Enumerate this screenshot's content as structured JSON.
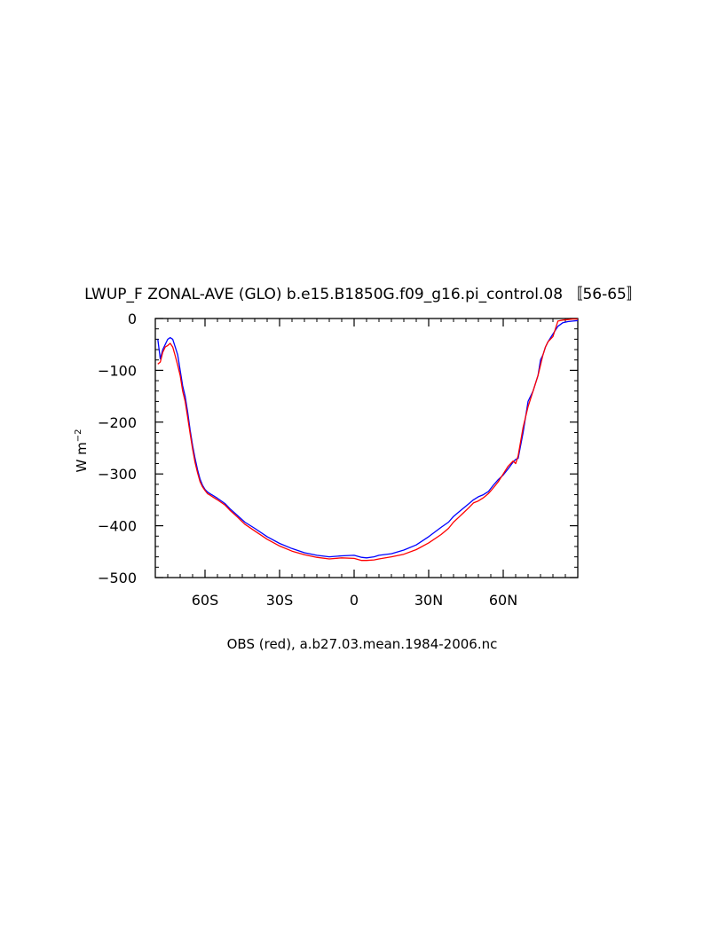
{
  "chart_data": {
    "type": "line",
    "title": "LWUP_F ZONAL-AVE (GLO) b.e15.B1850G.f09_g16.pi_control.08 〚56-65〛",
    "xlabel": "OBS (red), a.b27.03.mean.1984-2006.nc",
    "ylabel": "W m",
    "ylabel_sup": "−2",
    "xlim": [
      -80,
      90
    ],
    "ylim": [
      -500,
      0
    ],
    "x_ticks": [
      {
        "value": -60,
        "label": "60S"
      },
      {
        "value": -30,
        "label": "30S"
      },
      {
        "value": 0,
        "label": "0"
      },
      {
        "value": 30,
        "label": "30N"
      },
      {
        "value": 60,
        "label": "60N"
      }
    ],
    "y_ticks": [
      {
        "value": 0,
        "label": "0"
      },
      {
        "value": -100,
        "label": "−100"
      },
      {
        "value": -200,
        "label": "−200"
      },
      {
        "value": -300,
        "label": "−300"
      },
      {
        "value": -400,
        "label": "−400"
      },
      {
        "value": -500,
        "label": "−500"
      }
    ],
    "grid": false,
    "series": [
      {
        "color": "#0000ff",
        "x": [
          -79,
          -78,
          -77,
          -76,
          -75,
          -74,
          -73,
          -72,
          -71,
          -70,
          -69,
          -68,
          -67,
          -66,
          -65,
          -64,
          -63,
          -62,
          -61,
          -60,
          -59,
          -58,
          -57,
          -55,
          -52,
          -50,
          -47,
          -44,
          -40,
          -35,
          -30,
          -25,
          -20,
          -15,
          -10,
          -5,
          0,
          3,
          5,
          8,
          10,
          15,
          20,
          25,
          30,
          35,
          38,
          40,
          42,
          44,
          46,
          48,
          50,
          52,
          54,
          56,
          58,
          60,
          62,
          64,
          65,
          66,
          68,
          70,
          72,
          74,
          75,
          76,
          77,
          78,
          80,
          82,
          84,
          86,
          88,
          90
        ],
        "y": [
          -40,
          -78,
          -60,
          -50,
          -40,
          -37,
          -40,
          -55,
          -70,
          -100,
          -130,
          -150,
          -180,
          -215,
          -245,
          -270,
          -292,
          -310,
          -322,
          -330,
          -335,
          -338,
          -341,
          -347,
          -357,
          -367,
          -380,
          -393,
          -405,
          -421,
          -434,
          -444,
          -452,
          -457,
          -460,
          -458,
          -457,
          -461,
          -462,
          -460,
          -457,
          -454,
          -447,
          -437,
          -421,
          -403,
          -393,
          -382,
          -374,
          -366,
          -358,
          -350,
          -344,
          -340,
          -334,
          -322,
          -311,
          -302,
          -290,
          -277,
          -272,
          -270,
          -220,
          -160,
          -140,
          -110,
          -80,
          -70,
          -55,
          -45,
          -30,
          -15,
          -8,
          -6,
          -5,
          -4
        ]
      },
      {
        "color": "#ff0000",
        "x": [
          -79,
          -78,
          -77,
          -76,
          -75,
          -74,
          -73,
          -72,
          -71,
          -70,
          -69,
          -68,
          -67,
          -66,
          -65,
          -64,
          -63,
          -62,
          -61,
          -60,
          -59,
          -58,
          -57,
          -55,
          -52,
          -50,
          -47,
          -44,
          -40,
          -35,
          -30,
          -25,
          -20,
          -15,
          -10,
          -5,
          0,
          3,
          5,
          8,
          10,
          15,
          20,
          25,
          30,
          35,
          38,
          40,
          42,
          44,
          46,
          48,
          50,
          52,
          54,
          56,
          58,
          60,
          62,
          64,
          65,
          66,
          68,
          70,
          72,
          74,
          75,
          76,
          77,
          78,
          80,
          82,
          84,
          86,
          88,
          90
        ],
        "y": [
          -88,
          -84,
          -65,
          -55,
          -52,
          -48,
          -55,
          -72,
          -90,
          -110,
          -140,
          -160,
          -190,
          -222,
          -252,
          -278,
          -298,
          -315,
          -325,
          -332,
          -338,
          -341,
          -344,
          -350,
          -360,
          -370,
          -383,
          -397,
          -410,
          -426,
          -439,
          -449,
          -456,
          -461,
          -464,
          -462,
          -463,
          -467,
          -467,
          -466,
          -464,
          -460,
          -455,
          -446,
          -433,
          -417,
          -405,
          -393,
          -384,
          -375,
          -366,
          -356,
          -352,
          -346,
          -338,
          -327,
          -315,
          -300,
          -285,
          -275,
          -280,
          -265,
          -210,
          -170,
          -140,
          -110,
          -90,
          -70,
          -55,
          -45,
          -35,
          -5,
          -3,
          -2,
          -1,
          -1
        ]
      }
    ]
  }
}
